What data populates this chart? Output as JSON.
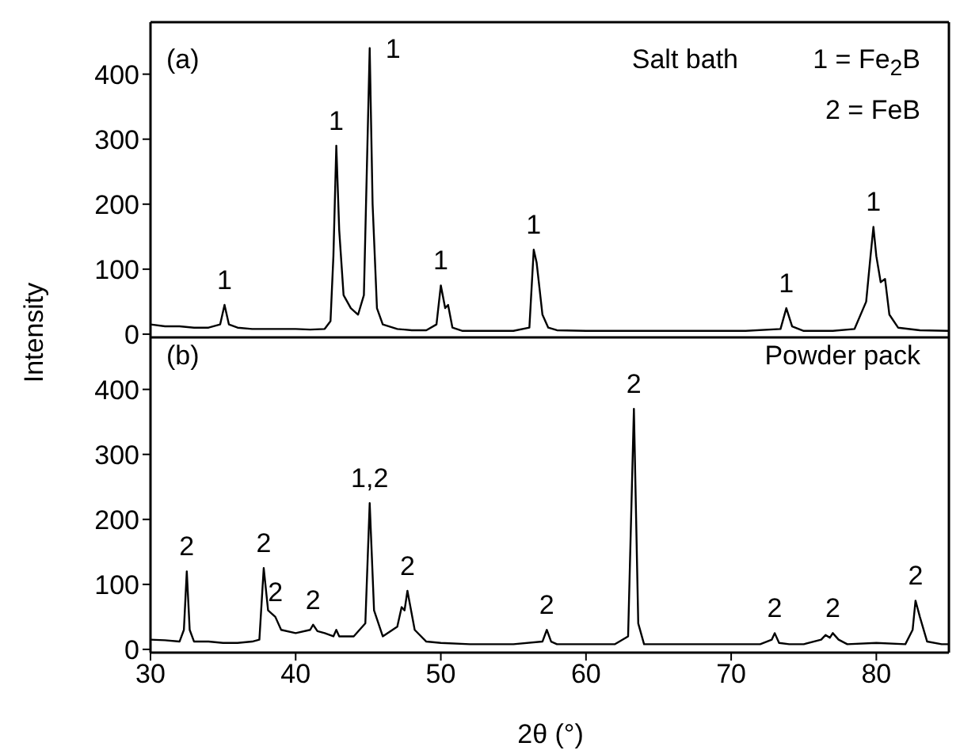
{
  "chart_data": [
    {
      "type": "line",
      "ylabel": "Intensity",
      "xlim": [
        30,
        85
      ],
      "ylim": [
        -5,
        480
      ],
      "yticks": [
        0,
        100,
        200,
        300,
        400
      ],
      "tick_labels": "y",
      "marker": "none",
      "series": [
        {
          "color": "#000000",
          "x": [
            30,
            31,
            32,
            33,
            34,
            34.8,
            35.1,
            35.4,
            36,
            37,
            38,
            39,
            40,
            41,
            42,
            42.4,
            42.6,
            42.8,
            43.0,
            43.3,
            43.8,
            44.3,
            44.7,
            44.9,
            45.1,
            45.3,
            45.6,
            46,
            47,
            48,
            49,
            49.7,
            50.0,
            50.3,
            50.5,
            50.8,
            51.5,
            53,
            55,
            56.1,
            56.4,
            56.6,
            56.8,
            57.0,
            57.4,
            58,
            60,
            62,
            65,
            68,
            71,
            73.4,
            73.8,
            74.2,
            75,
            77,
            78.5,
            79.3,
            79.6,
            79.8,
            80.0,
            80.3,
            80.6,
            80.9,
            81.5,
            83,
            85
          ],
          "values": [
            15,
            12,
            12,
            10,
            10,
            15,
            45,
            15,
            10,
            8,
            8,
            8,
            8,
            7,
            8,
            20,
            120,
            290,
            160,
            60,
            40,
            30,
            60,
            250,
            440,
            200,
            40,
            15,
            8,
            6,
            6,
            15,
            75,
            40,
            45,
            10,
            5,
            5,
            5,
            10,
            130,
            110,
            70,
            30,
            10,
            6,
            5,
            5,
            5,
            5,
            5,
            8,
            40,
            12,
            5,
            5,
            8,
            50,
            120,
            165,
            120,
            80,
            85,
            30,
            10,
            6,
            5
          ]
        }
      ],
      "annotations": [
        "(a)",
        "Salt bath",
        "1 = Fe$_{2}$B",
        "2 = FeB",
        {
          "text": "1",
          "x": 35.1,
          "y": 45
        },
        {
          "text": "1",
          "x": 42.8,
          "y": 290
        },
        {
          "text": "1",
          "x": 45.1,
          "y": 440
        },
        {
          "text": "1",
          "x": 50.0,
          "y": 75
        },
        {
          "text": "1",
          "x": 56.4,
          "y": 130
        },
        {
          "text": "1",
          "x": 73.8,
          "y": 40
        },
        {
          "text": "1",
          "x": 79.8,
          "y": 165
        }
      ]
    },
    {
      "type": "line",
      "xlabel": "2θ (°)",
      "xlim": [
        30,
        85
      ],
      "xticks": [
        30,
        40,
        50,
        60,
        70,
        80
      ],
      "ylim": [
        -5,
        480
      ],
      "yticks": [
        0,
        100,
        200,
        300,
        400
      ],
      "marker": "none",
      "series": [
        {
          "color": "#000000",
          "x": [
            30,
            31,
            32,
            32.3,
            32.5,
            32.7,
            33,
            34,
            35,
            36,
            37,
            37.5,
            37.8,
            38.1,
            38.6,
            39,
            40,
            41,
            41.2,
            41.5,
            42,
            42.6,
            42.8,
            43,
            44,
            44.8,
            45.1,
            45.4,
            46,
            47,
            47.3,
            47.5,
            47.7,
            48.2,
            49,
            50,
            52,
            55,
            57,
            57.3,
            57.6,
            58,
            60,
            62,
            62.9,
            63.3,
            63.6,
            64,
            66,
            68,
            70,
            72,
            72.8,
            73.0,
            73.3,
            74,
            75,
            76.2,
            76.5,
            76.8,
            77.0,
            77.4,
            78,
            80,
            82,
            82.5,
            82.7,
            83.0,
            83.5,
            84.5,
            85
          ],
          "values": [
            15,
            14,
            12,
            30,
            120,
            30,
            12,
            12,
            10,
            10,
            12,
            15,
            125,
            60,
            50,
            30,
            25,
            30,
            38,
            28,
            25,
            20,
            30,
            20,
            20,
            40,
            225,
            60,
            20,
            35,
            65,
            60,
            90,
            30,
            12,
            10,
            8,
            8,
            12,
            30,
            12,
            8,
            8,
            8,
            20,
            370,
            40,
            8,
            8,
            8,
            8,
            8,
            15,
            25,
            10,
            8,
            8,
            15,
            22,
            18,
            25,
            15,
            8,
            10,
            8,
            30,
            75,
            50,
            12,
            8,
            8
          ]
        }
      ],
      "annotations": [
        "(b)",
        "Powder pack",
        {
          "text": "2",
          "x": 32.5,
          "y": 120
        },
        {
          "text": "2",
          "x": 37.8,
          "y": 125
        },
        {
          "text": "2",
          "x": 38.6,
          "y": 50
        },
        {
          "text": "2",
          "x": 41.2,
          "y": 38
        },
        {
          "text": "1,2",
          "x": 45.1,
          "y": 225
        },
        {
          "text": "2",
          "x": 47.7,
          "y": 90
        },
        {
          "text": "2",
          "x": 57.3,
          "y": 30
        },
        {
          "text": "2",
          "x": 63.3,
          "y": 370
        },
        {
          "text": "2",
          "x": 73.0,
          "y": 25
        },
        {
          "text": "2",
          "x": 77.0,
          "y": 25
        },
        {
          "text": "2",
          "x": 82.7,
          "y": 75
        }
      ]
    }
  ]
}
